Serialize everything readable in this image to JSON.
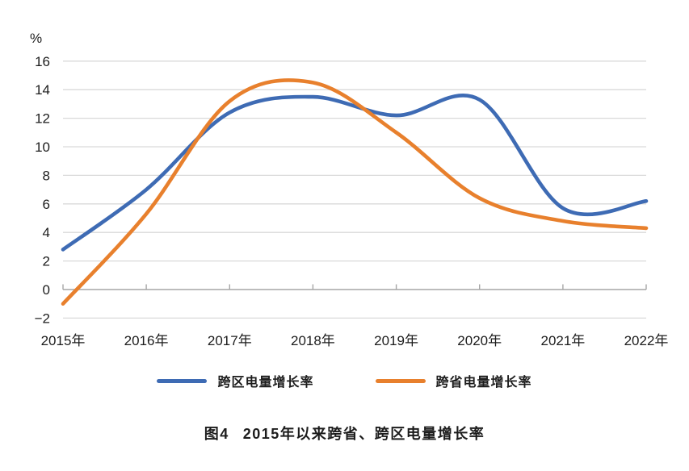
{
  "chart_data": {
    "type": "line",
    "title": "图4 2015年以来跨省、跨区电量增长率",
    "xlabel": "",
    "ylabel": "%",
    "categories": [
      "2015年",
      "2016年",
      "2017年",
      "2018年",
      "2019年",
      "2020年",
      "2021年",
      "2022年"
    ],
    "series": [
      {
        "id": "cross-region",
        "name": "跨区电量增长率",
        "color": "#3E6BB4",
        "values": [
          2.8,
          7.0,
          12.4,
          13.5,
          12.2,
          13.3,
          5.7,
          6.2
        ]
      },
      {
        "id": "cross-province",
        "name": "跨省电量增长率",
        "color": "#E8802D",
        "values": [
          -1.0,
          5.3,
          13.2,
          14.5,
          11.0,
          6.4,
          4.8,
          4.3
        ]
      }
    ],
    "ylim": [
      -2,
      16
    ],
    "ytick_step": 2,
    "grid": true,
    "line_style": "smooth",
    "legend_position": "bottom"
  },
  "axis": {
    "percent_label": "%",
    "yticks": [
      {
        "value": 16,
        "label": "16"
      },
      {
        "value": 14,
        "label": "14"
      },
      {
        "value": 12,
        "label": "12"
      },
      {
        "value": 10,
        "label": "10"
      },
      {
        "value": 8,
        "label": "8"
      },
      {
        "value": 6,
        "label": "6"
      },
      {
        "value": 4,
        "label": "4"
      },
      {
        "value": 2,
        "label": "2"
      },
      {
        "value": 0,
        "label": "0"
      },
      {
        "value": -2,
        "label": "−2"
      }
    ],
    "gridline_color": "#d9d9d9",
    "axis_color": "#a6a6a6"
  },
  "caption": {
    "prefix": "图4",
    "text": "2015年以来跨省、跨区电量增长率"
  }
}
